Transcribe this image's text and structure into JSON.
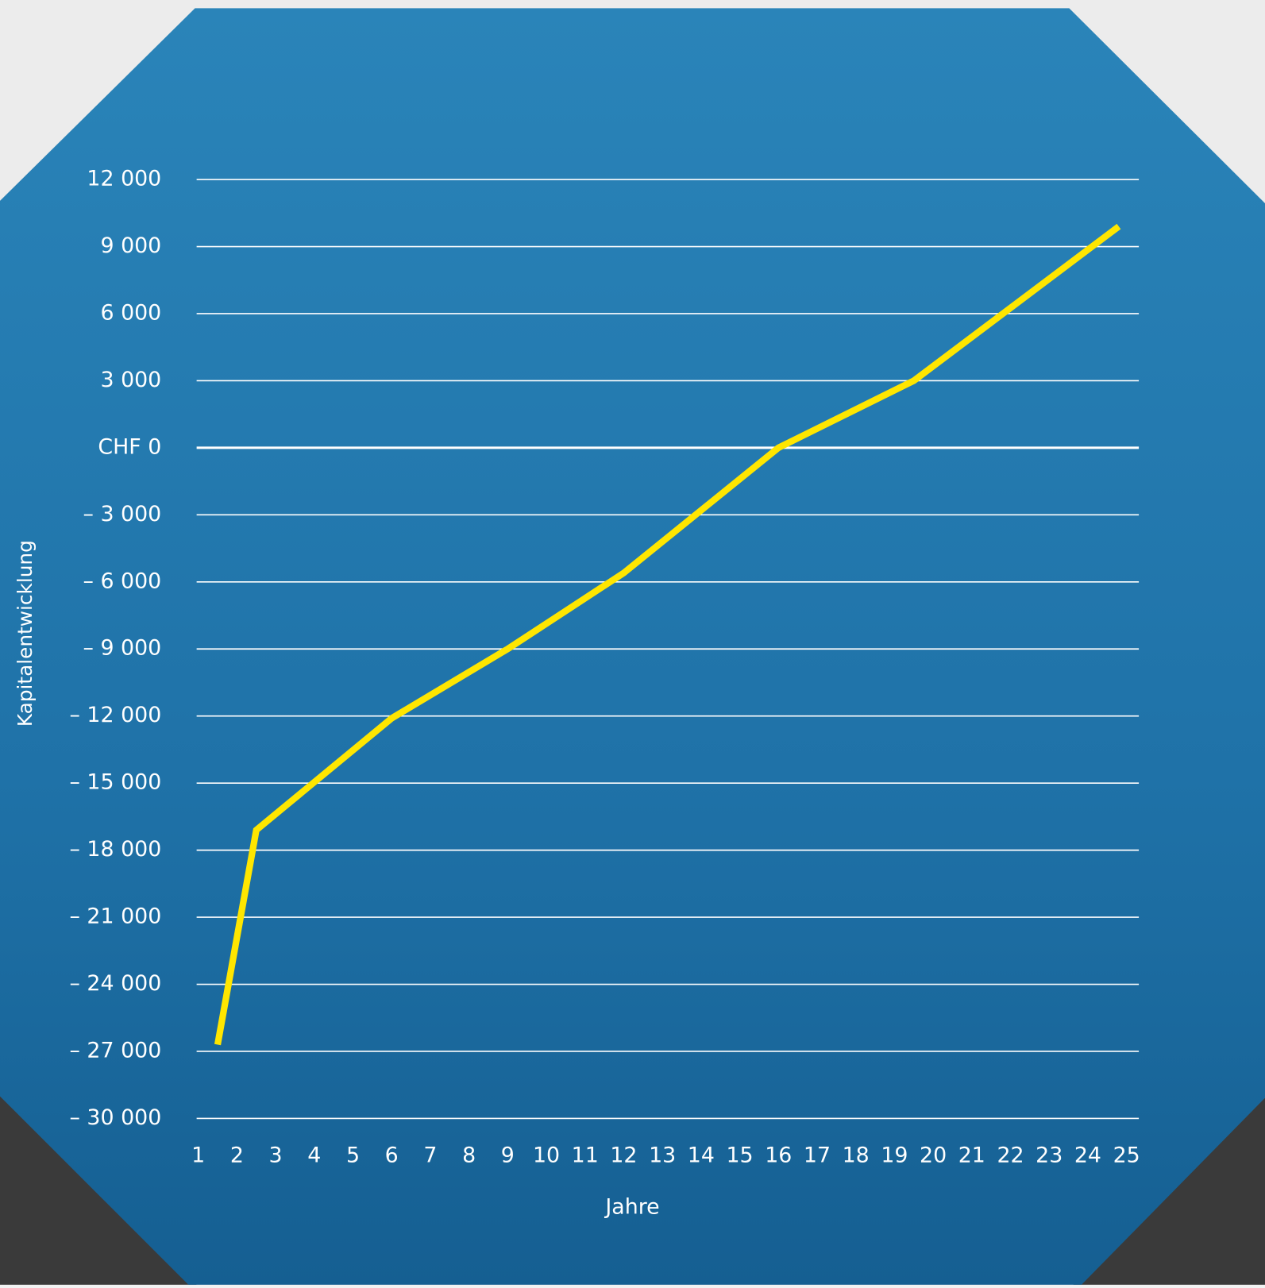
{
  "chart_data": {
    "type": "line",
    "x_label": "Jahre",
    "y_label": "Kapitalentwicklung",
    "x": [
      1.5,
      2.5,
      6,
      9,
      12,
      16,
      19.5,
      24.8
    ],
    "series": [
      {
        "color": "#ffe600",
        "values": [
          -26700,
          -17100,
          -12100,
          -9000,
          -5600,
          0,
          3000,
          9900
        ]
      }
    ],
    "xlim": [
      1,
      25
    ],
    "xticks": [
      1,
      2,
      3,
      4,
      5,
      6,
      7,
      8,
      9,
      10,
      11,
      12,
      13,
      14,
      15,
      16,
      17,
      18,
      19,
      20,
      21,
      22,
      23,
      24,
      25
    ],
    "ylim": [
      -30000,
      12000
    ],
    "yticks": [
      {
        "value": 12000,
        "label": "12 000"
      },
      {
        "value": 9000,
        "label": "9 000"
      },
      {
        "value": 6000,
        "label": "6 000"
      },
      {
        "value": 3000,
        "label": "3 000"
      },
      {
        "value": 0,
        "label": "CHF 0"
      },
      {
        "value": -3000,
        "label": "– 3 000"
      },
      {
        "value": -6000,
        "label": "– 6 000"
      },
      {
        "value": -9000,
        "label": "– 9 000"
      },
      {
        "value": -12000,
        "label": "– 12 000"
      },
      {
        "value": -15000,
        "label": "– 15 000"
      },
      {
        "value": -18000,
        "label": "– 18 000"
      },
      {
        "value": -21000,
        "label": "– 21 000"
      },
      {
        "value": -24000,
        "label": "– 24 000"
      },
      {
        "value": -27000,
        "label": "– 27 000"
      },
      {
        "value": -30000,
        "label": "– 30 000"
      }
    ],
    "grid": true
  }
}
